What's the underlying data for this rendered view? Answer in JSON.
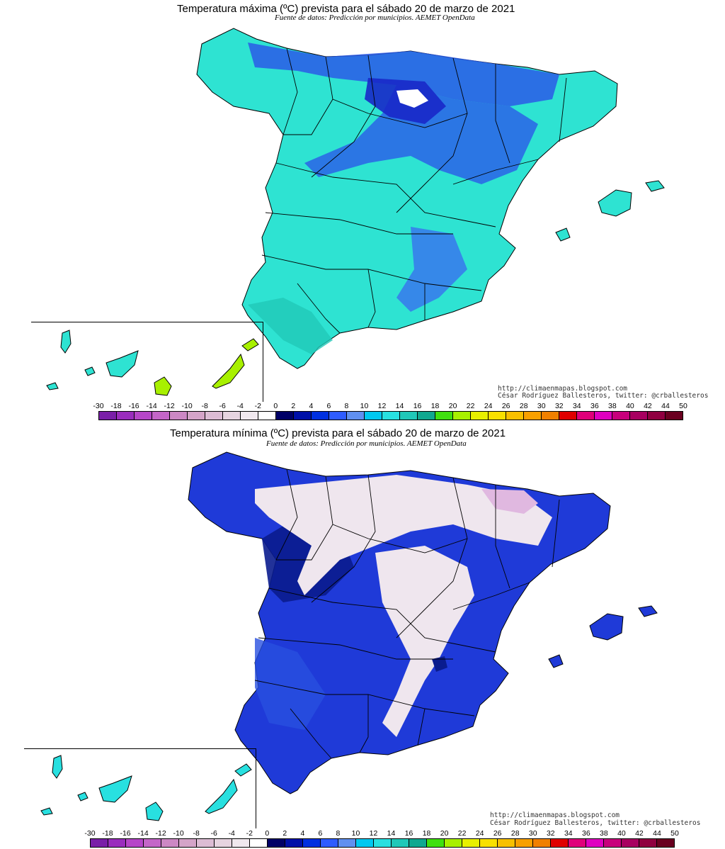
{
  "maps": [
    {
      "title": "Temperatura máxima (ºC) prevista para el sábado 20 de marzo de 2021",
      "source": "Fuente de datos: Predicción por municipios. AEMET OpenData",
      "credit_url": "http://climaenmapas.blogspot.com",
      "credit_author": "César Rodríguez Ballesteros, twitter: @crballesteros"
    },
    {
      "title": "Temperatura mínima (ºC) prevista para el sábado 20 de marzo de 2021",
      "source": "Fuente de datos: Predicción por municipios. AEMET OpenData",
      "credit_url": "http://climaenmapas.blogspot.com",
      "credit_author": "César Rodríguez Ballesteros, twitter: @crballesteros"
    }
  ],
  "legend": {
    "labels": [
      "-30",
      "-18",
      "-16",
      "-14",
      "-12",
      "-10",
      "-8",
      "-6",
      "-4",
      "-2",
      "0",
      "2",
      "4",
      "6",
      "8",
      "10",
      "12",
      "14",
      "16",
      "18",
      "20",
      "22",
      "24",
      "26",
      "28",
      "30",
      "32",
      "34",
      "36",
      "38",
      "40",
      "42",
      "44",
      "50"
    ],
    "colors": [
      "#7a1fa8",
      "#9a2dbd",
      "#b646c8",
      "#c466c8",
      "#cc88c4",
      "#d4a4c8",
      "#dcbcd4",
      "#e6d4e0",
      "#f0e8ee",
      "#ffffff",
      "#000066",
      "#0010a8",
      "#0030e0",
      "#2e5cff",
      "#6090f0",
      "#00c8f0",
      "#28e0e0",
      "#20c8b8",
      "#10a890",
      "#40e010",
      "#a8f000",
      "#e8f000",
      "#f8e000",
      "#f8c000",
      "#f8a000",
      "#f08000",
      "#e00000",
      "#e0007a",
      "#e000c0",
      "#c8007c",
      "#a80060",
      "#900040",
      "#6a0020"
    ]
  },
  "colors": {
    "max_land_base": "#2ee3d2",
    "max_cool": "#2a5ae8",
    "max_cold": "#1828c8",
    "min_land_base": "#1f3ad8",
    "min_deep": "#0a1c8e",
    "min_frost": "#efe6ee",
    "border": "#000000"
  }
}
